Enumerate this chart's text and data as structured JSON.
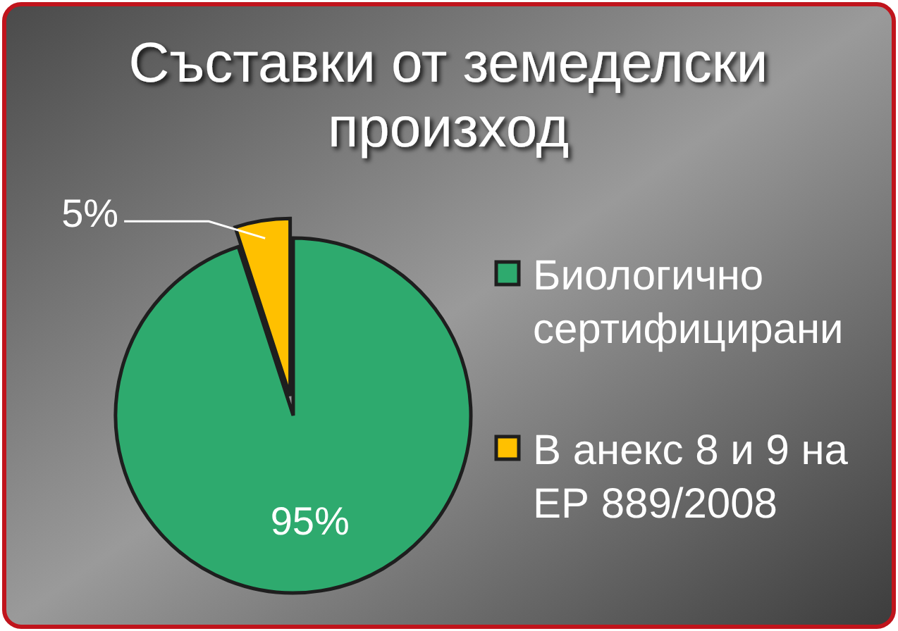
{
  "chart_data": {
    "type": "pie",
    "title": "Съставки от земеделски произход",
    "categories": [
      "Биологично сертифицирани",
      "В анекс 8 и 9 на ЕР 889/2008"
    ],
    "values": [
      95,
      5
    ],
    "colors": [
      "#2eaa6e",
      "#ffc000"
    ],
    "value_labels": [
      "95%",
      "5%"
    ],
    "legend": "right"
  }
}
